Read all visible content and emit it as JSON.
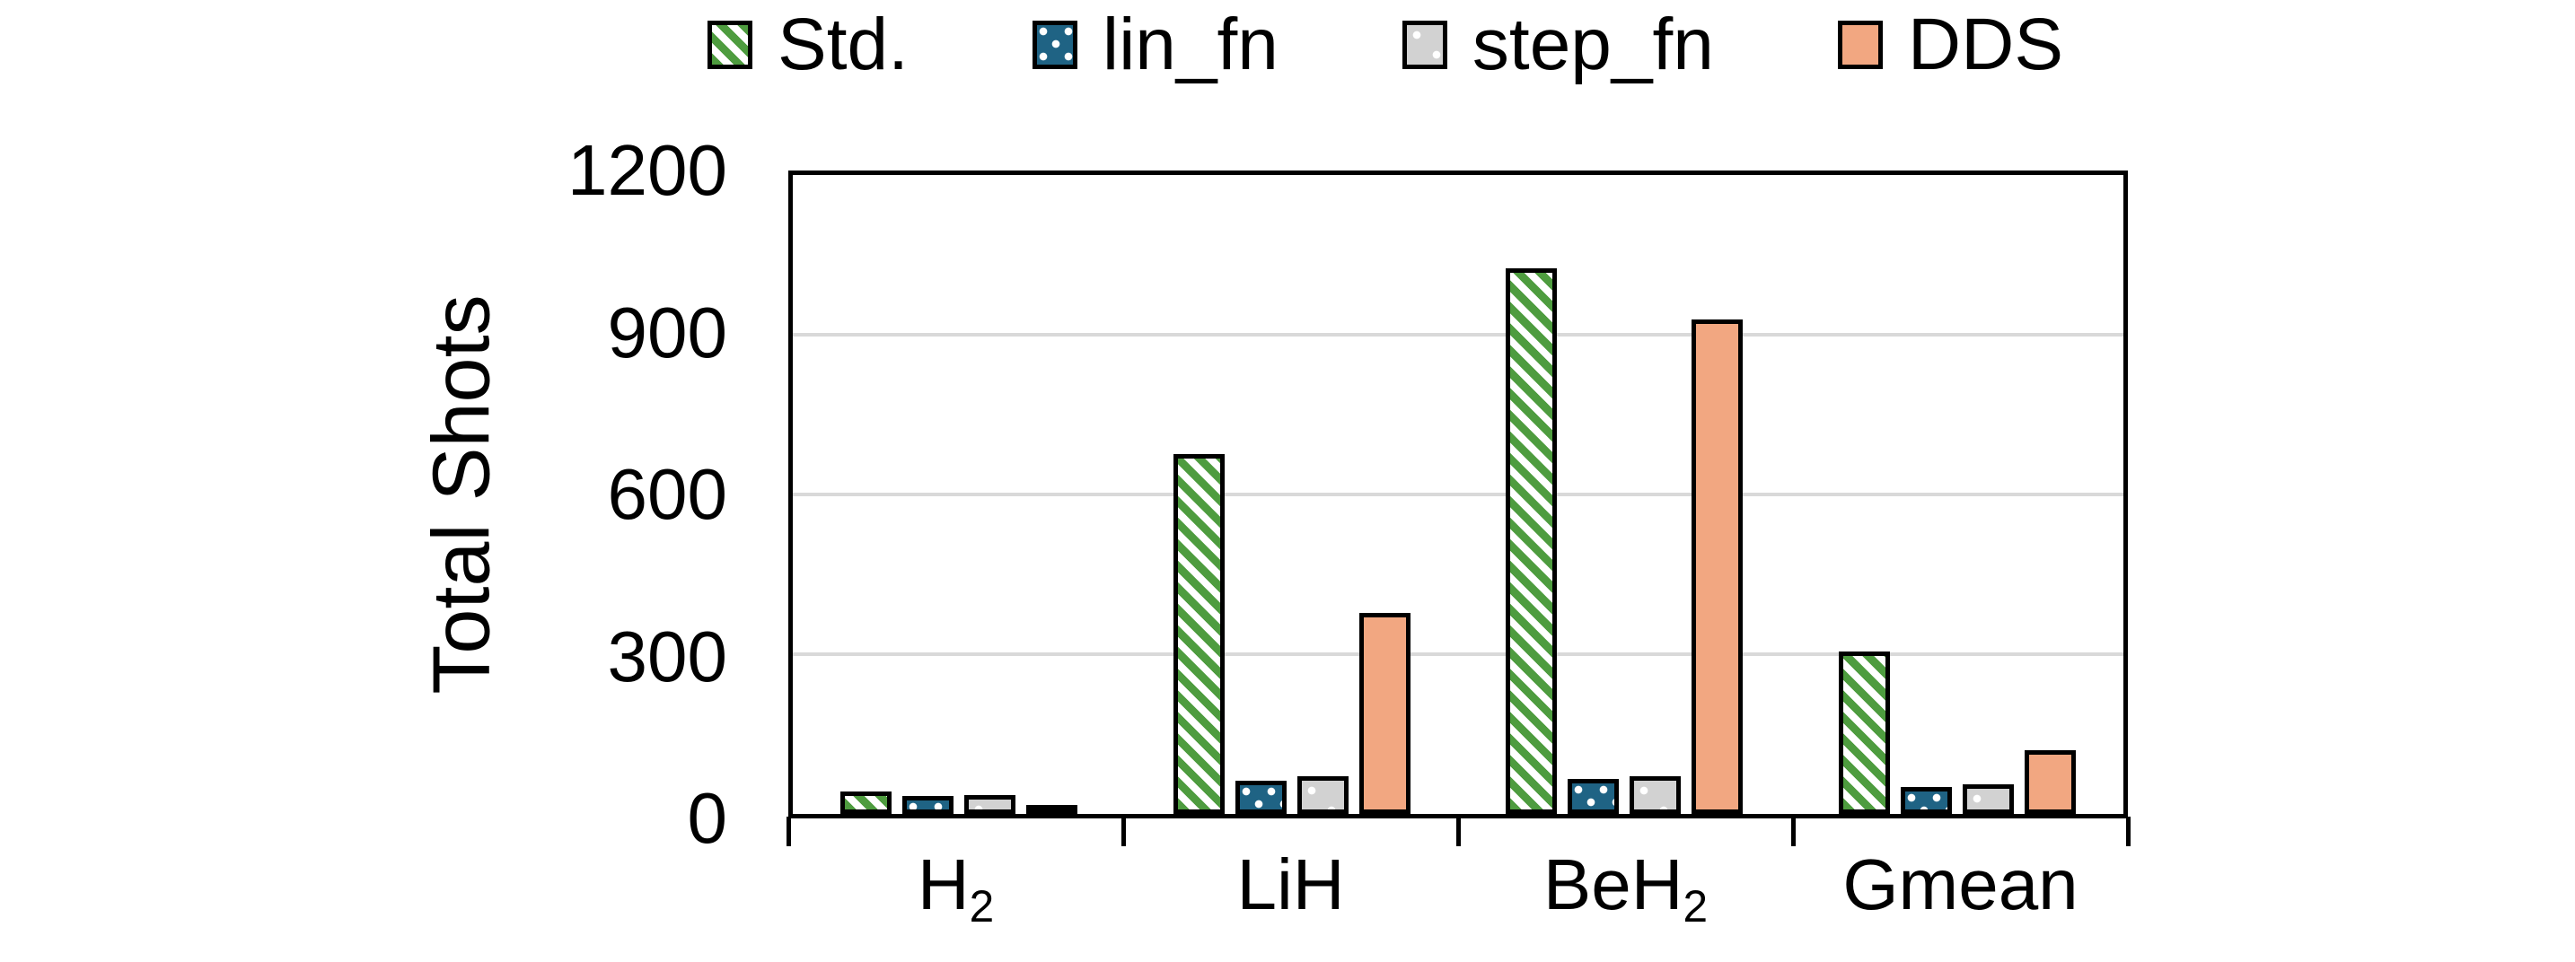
{
  "chart_data": {
    "type": "bar",
    "title": "",
    "xlabel": "",
    "ylabel": "Total Shots",
    "ylim": [
      0,
      1200
    ],
    "yticks": [
      0,
      300,
      600,
      900,
      1200
    ],
    "grid": "horizontal-light-gray",
    "legend_position": "top-center",
    "categories": [
      {
        "text": "H",
        "sub": "2"
      },
      {
        "text": "LiH",
        "sub": ""
      },
      {
        "text": "BeH",
        "sub": "2"
      },
      {
        "text": "Gmean",
        "sub": ""
      }
    ],
    "series": [
      {
        "name": "Std.",
        "pattern": "diagonal-stripes",
        "color": "#4e9c3f",
        "values": [
          42,
          675,
          1025,
          305
        ]
      },
      {
        "name": "lin_fn",
        "pattern": "dots-dense",
        "color": "#1f6384",
        "values": [
          33,
          63,
          66,
          50
        ]
      },
      {
        "name": "step_fn",
        "pattern": "dots-sparse",
        "color": "#d2d2d2",
        "values": [
          35,
          70,
          70,
          55
        ]
      },
      {
        "name": "DDS",
        "pattern": "solid",
        "color": "#f2a781",
        "values": [
          5,
          378,
          928,
          120
        ]
      }
    ]
  },
  "colors": {
    "axis": "#000000",
    "gridline": "#d9d9d9",
    "background": "#ffffff"
  }
}
